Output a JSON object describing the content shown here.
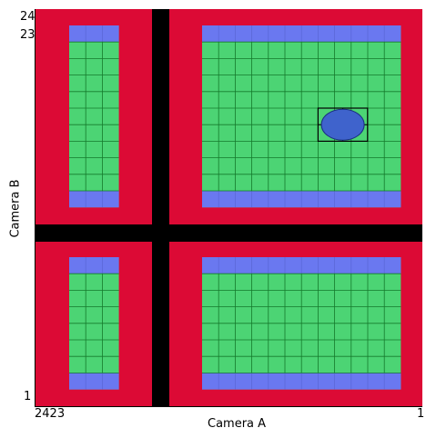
{
  "diagram": {
    "x_axis_label": "Camera A",
    "y_axis_label": "Camera B",
    "y_ticks": {
      "top_a": "24",
      "top_b": "23",
      "bottom": "1"
    },
    "x_ticks": {
      "left": "2423",
      "right": "1"
    },
    "colors": {
      "background_frame": "#dc0a35",
      "divider": "#000000",
      "grid_fill": "#4cd474",
      "grid_line": "#157a2c",
      "edge_rows": "#6a78f0",
      "edge_rows_line": "#5b68d8",
      "marker_fill": "#3f63cc",
      "marker_stroke": "#1a2e80",
      "selection_box": "#000000"
    },
    "marker": {
      "shape": "ellipse",
      "description_visible": false
    }
  }
}
